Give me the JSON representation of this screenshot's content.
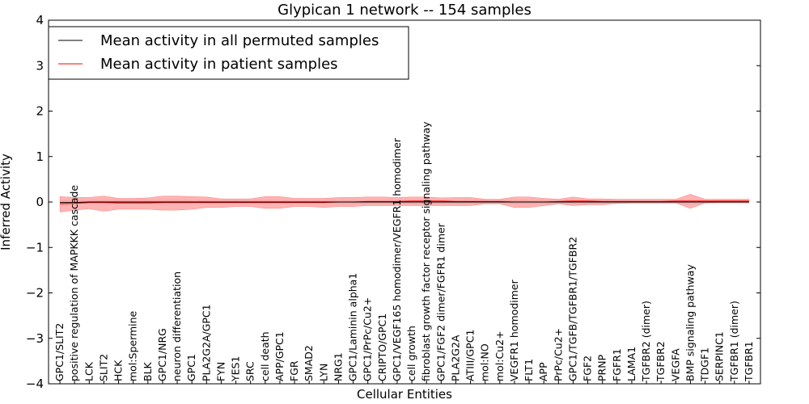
{
  "chart_data": {
    "type": "line",
    "title": "Glypican 1 network -- 154 samples",
    "xlabel": "Cellular Entities",
    "ylabel": "Inferred Activity",
    "ylim": [
      -4,
      4
    ],
    "yticks": [
      "4",
      "3",
      "2",
      "1",
      "0",
      "−1",
      "−2",
      "−3",
      "−4"
    ],
    "grid": false,
    "legend_placement": "top-left",
    "categories": [
      "GPC1/SLIT2",
      "positive regulation of MAPKKK cascade",
      "LCK",
      "SLIT2",
      "HCK",
      "mol:Spermine",
      "BLK",
      "GPC1/NRG",
      "neuron differentiation",
      "GPC1",
      "PLA2G2A/GPC1",
      "FYN",
      "YES1",
      "SRC",
      "cell death",
      "APP/GPC1",
      "FGR",
      "SMAD2",
      "LYN",
      "NRG1",
      "GPC1/Laminin alpha1",
      "GPC1/PrPc/Cu2+",
      "CRIPTO/GPC1",
      "GPC1/VEGF165 homodimer/VEGFR1 homodimer",
      "cell growth",
      "fibroblast growth factor receptor signaling pathway",
      "GPC1/FGF2 dimer/FGFR1 dimer",
      "PLA2G2A",
      "ATIII/GPC1",
      "mol:NO",
      "mol:Cu2+",
      "VEGFR1 homodimer",
      "FLT1",
      "APP",
      "PrPc/Cu2+",
      "GPC1/TGFB/TGFBR1/TGFBR2",
      "FGF2",
      "PRNP",
      "FGFR1",
      "LAMA1",
      "TGFBR2 (dimer)",
      "TGFBR2",
      "VEGFA",
      "BMP signaling pathway",
      "TDGF1",
      "SERPINC1",
      "TGFBR1 (dimer)",
      "TGFBR1"
    ],
    "series": [
      {
        "name": "Mean activity in all permuted samples",
        "color": "#000000",
        "values": [
          -0.01,
          -0.01,
          0.0,
          0.0,
          0.0,
          0.0,
          0.0,
          0.0,
          0.0,
          0.0,
          0.0,
          0.0,
          0.0,
          0.0,
          0.0,
          0.0,
          0.0,
          0.0,
          0.0,
          0.0,
          0.0,
          0.0,
          0.0,
          0.0,
          0.0,
          0.0,
          0.0,
          0.0,
          0.0,
          0.0,
          0.0,
          0.0,
          0.0,
          0.0,
          0.0,
          0.0,
          0.0,
          0.0,
          0.0,
          0.0,
          0.0,
          0.0,
          0.0,
          0.0,
          0.0,
          0.0,
          0.0,
          0.0
        ],
        "band_low": [
          -0.04,
          -0.04,
          -0.04,
          -0.04,
          -0.04,
          -0.04,
          -0.04,
          -0.04,
          -0.04,
          -0.04,
          -0.04,
          -0.04,
          -0.04,
          -0.04,
          -0.04,
          -0.04,
          -0.04,
          -0.04,
          -0.04,
          -0.04,
          -0.04,
          -0.04,
          -0.04,
          -0.04,
          -0.04,
          -0.04,
          -0.04,
          -0.04,
          -0.04,
          -0.04,
          -0.04,
          -0.04,
          -0.04,
          -0.04,
          -0.04,
          -0.04,
          -0.04,
          -0.04,
          -0.04,
          -0.04,
          -0.04,
          -0.04,
          -0.04,
          -0.04,
          -0.04,
          -0.04,
          -0.04,
          -0.04
        ],
        "band_high": [
          0.04,
          0.04,
          0.04,
          0.04,
          0.04,
          0.04,
          0.04,
          0.04,
          0.04,
          0.04,
          0.04,
          0.04,
          0.04,
          0.04,
          0.04,
          0.04,
          0.04,
          0.04,
          0.04,
          0.04,
          0.04,
          0.04,
          0.04,
          0.04,
          0.04,
          0.04,
          0.04,
          0.04,
          0.04,
          0.04,
          0.04,
          0.04,
          0.04,
          0.04,
          0.04,
          0.04,
          0.04,
          0.04,
          0.04,
          0.04,
          0.04,
          0.04,
          0.04,
          0.04,
          0.04,
          0.04,
          0.04,
          0.04
        ],
        "band_color": "#dddddd"
      },
      {
        "name": "Mean activity in patient samples",
        "color": "#ff0000",
        "values": [
          -0.04,
          -0.03,
          -0.01,
          -0.01,
          -0.02,
          -0.02,
          -0.02,
          -0.01,
          -0.01,
          -0.01,
          -0.01,
          -0.01,
          -0.01,
          -0.01,
          -0.01,
          -0.01,
          -0.01,
          -0.01,
          -0.01,
          0.0,
          0.0,
          0.01,
          0.01,
          0.01,
          0.02,
          0.02,
          0.02,
          0.01,
          0.01,
          0.01,
          0.01,
          0.0,
          0.0,
          0.0,
          0.01,
          0.02,
          0.02,
          0.01,
          0.01,
          0.01,
          0.01,
          0.01,
          0.02,
          0.02,
          0.02,
          0.02,
          0.02,
          0.02
        ],
        "band_low": [
          -0.22,
          -0.18,
          -0.15,
          -0.2,
          -0.16,
          -0.16,
          -0.16,
          -0.18,
          -0.18,
          -0.16,
          -0.12,
          -0.12,
          -0.1,
          -0.1,
          -0.14,
          -0.14,
          -0.1,
          -0.1,
          -0.12,
          -0.1,
          -0.1,
          -0.08,
          -0.08,
          -0.08,
          -0.08,
          -0.08,
          -0.08,
          -0.08,
          -0.08,
          -0.04,
          -0.04,
          -0.12,
          -0.12,
          -0.08,
          -0.04,
          -0.08,
          -0.06,
          -0.06,
          -0.03,
          -0.02,
          -0.02,
          -0.02,
          -0.02,
          -0.14,
          -0.02,
          -0.01,
          -0.01,
          -0.01
        ],
        "band_high": [
          0.12,
          0.1,
          0.1,
          0.13,
          0.08,
          0.08,
          0.09,
          0.13,
          0.13,
          0.12,
          0.11,
          0.07,
          0.07,
          0.07,
          0.12,
          0.12,
          0.08,
          0.08,
          0.08,
          0.1,
          0.1,
          0.11,
          0.11,
          0.1,
          0.11,
          0.11,
          0.09,
          0.1,
          0.1,
          0.06,
          0.06,
          0.11,
          0.11,
          0.08,
          0.06,
          0.11,
          0.07,
          0.07,
          0.06,
          0.06,
          0.06,
          0.06,
          0.06,
          0.17,
          0.06,
          0.06,
          0.06,
          0.06
        ],
        "band_color": "#ff8080"
      }
    ]
  }
}
